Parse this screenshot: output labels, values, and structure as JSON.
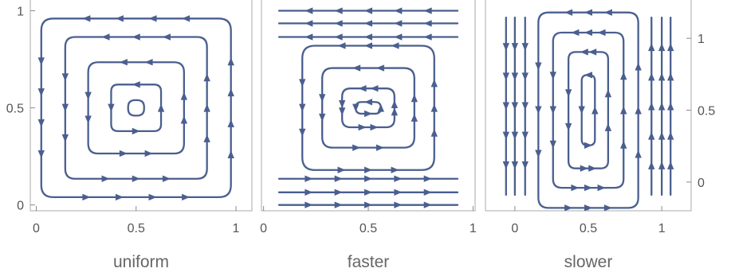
{
  "chart_data": [
    {
      "type": "streamplot",
      "title": "uniform",
      "field": "rotational",
      "xlim": [
        -0.03,
        1.08
      ],
      "ylim": [
        -0.03,
        1.08
      ],
      "x_ticks": [
        0,
        0.5,
        1
      ],
      "x_tick_labels": [
        "0",
        "0.5",
        "1"
      ],
      "y_ticks": [
        0,
        0.5,
        1
      ],
      "y_tick_labels": [
        "0",
        "0.5",
        "1"
      ],
      "y_axis_side": "left",
      "center": [
        0.5,
        0.5
      ],
      "streamlines": [
        {
          "half_width": 0.475,
          "half_height": 0.46,
          "corner_radius": 0.06,
          "arrows_per_side": 4
        },
        {
          "half_width": 0.355,
          "half_height": 0.365,
          "corner_radius": 0.05,
          "arrows_per_side": 3
        },
        {
          "half_width": 0.24,
          "half_height": 0.235,
          "corner_radius": 0.05,
          "arrows_per_side": 2
        },
        {
          "half_width": 0.125,
          "half_height": 0.12,
          "corner_radius": 0.035,
          "arrows_per_side": 1
        },
        {
          "half_width": 0.04,
          "half_height": 0.04,
          "corner_radius": 0.035,
          "arrows_per_side": 0
        }
      ],
      "color": "#4a5f8f"
    },
    {
      "type": "streamplot",
      "title": "faster",
      "field": "rotational",
      "xlim": [
        -0.01,
        1.01
      ],
      "ylim": [
        -0.03,
        1.08
      ],
      "x_ticks": [
        0,
        0.5,
        1
      ],
      "x_tick_labels": [
        "0",
        "0.5",
        "1"
      ],
      "y_ticks": [],
      "y_tick_labels": [],
      "center": [
        0.5,
        0.5
      ],
      "streamlines": [
        {
          "half_width": 0.315,
          "half_height": 0.32,
          "corner_radius": 0.06,
          "arrows_per_side": 3
        },
        {
          "half_width": 0.22,
          "half_height": 0.205,
          "corner_radius": 0.05,
          "arrows_per_side": 2
        },
        {
          "half_width": 0.125,
          "half_height": 0.1,
          "corner_radius": 0.04,
          "arrows_per_side": 2
        },
        {
          "half_width": 0.06,
          "half_height": 0.03,
          "corner_radius": 0.03,
          "arrows_per_side": 1
        }
      ],
      "flowlines": [
        {
          "y": 1.0,
          "direction": "left"
        },
        {
          "y": 0.935,
          "direction": "left"
        },
        {
          "y": 0.865,
          "direction": "left"
        },
        {
          "y": 0.135,
          "direction": "right"
        },
        {
          "y": 0.065,
          "direction": "right"
        },
        {
          "y": 0.0,
          "direction": "right"
        }
      ],
      "color": "#4a5f8f"
    },
    {
      "type": "streamplot",
      "title": "slower",
      "field": "rotational",
      "xlim": [
        -0.2,
        1.2
      ],
      "ylim": [
        -0.2,
        1.3
      ],
      "x_ticks": [
        0,
        0.5,
        1
      ],
      "x_tick_labels": [
        "0",
        "0.5",
        "1"
      ],
      "y_ticks": [
        0,
        0.5,
        1
      ],
      "y_tick_labels": [
        "0",
        "0.5",
        "1"
      ],
      "y_axis_side": "right",
      "center": [
        0.5,
        0.5
      ],
      "streamlines": [
        {
          "half_width": 0.34,
          "half_height": 0.68,
          "corner_radius": 0.07,
          "arrows_per_side": 3
        },
        {
          "half_width": 0.24,
          "half_height": 0.54,
          "corner_radius": 0.06,
          "arrows_per_side": 3
        },
        {
          "half_width": 0.135,
          "half_height": 0.405,
          "corner_radius": 0.05,
          "arrows_per_side": 2
        },
        {
          "half_width": 0.045,
          "half_height": 0.245,
          "corner_radius": 0.04,
          "arrows_per_side": 1
        }
      ],
      "flowlines": [
        {
          "x": -0.06,
          "direction": "down"
        },
        {
          "x": 0.0,
          "direction": "down"
        },
        {
          "x": 0.07,
          "direction": "down"
        },
        {
          "x": 0.93,
          "direction": "up"
        },
        {
          "x": 1.0,
          "direction": "up"
        },
        {
          "x": 1.06,
          "direction": "up"
        }
      ],
      "color": "#4a5f8f"
    }
  ]
}
